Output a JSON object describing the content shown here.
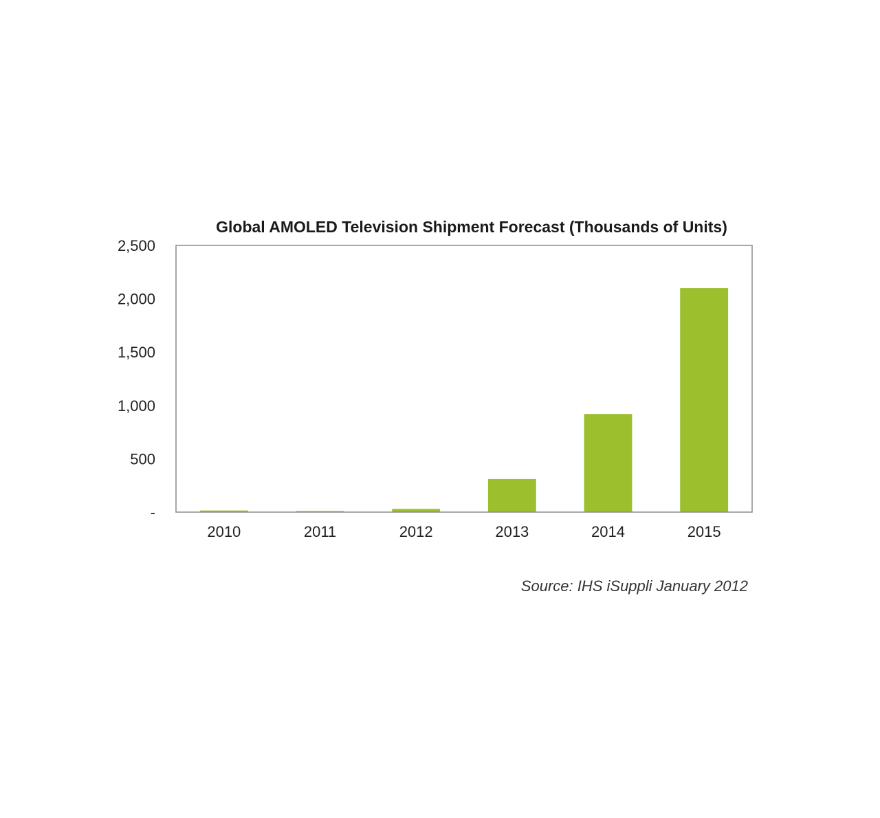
{
  "chart_data": {
    "type": "bar",
    "title": "Global AMOLED Television Shipment Forecast (Thousands of Units)",
    "categories": [
      "2010",
      "2011",
      "2012",
      "2013",
      "2014",
      "2015"
    ],
    "values": [
      15,
      10,
      30,
      310,
      920,
      2100
    ],
    "ylim": [
      0,
      2500
    ],
    "yticks": [
      0,
      500,
      1000,
      1500,
      2000,
      2500
    ],
    "ytick_labels": [
      "-",
      "500",
      "1,000",
      "1,500",
      "2,000",
      "2,500"
    ],
    "xlabel": "",
    "ylabel": "",
    "grid": false,
    "legend": "none",
    "bar_color": "#9cbf2e",
    "frame_color": "#8c8c8c"
  },
  "source": "Source: IHS iSuppli January 2012"
}
